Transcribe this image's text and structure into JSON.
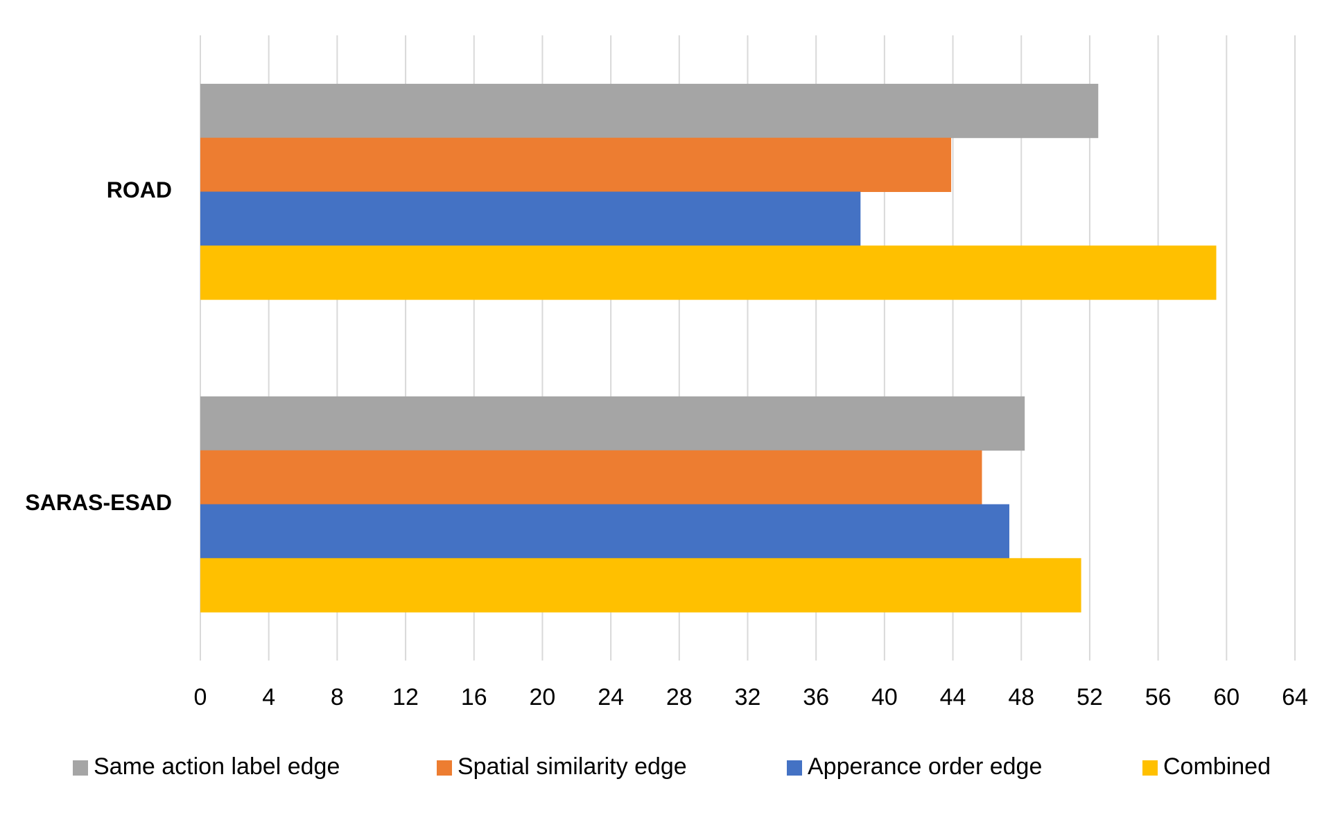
{
  "chart_data": {
    "type": "hbar",
    "categories": [
      "ROAD",
      "SARAS-ESAD"
    ],
    "series": [
      {
        "name": "Same action label edge",
        "color": "#a5a5a5",
        "values": [
          52.5,
          48.2
        ]
      },
      {
        "name": "Spatial similarity edge",
        "color": "#ed7d31",
        "values": [
          43.9,
          45.7
        ]
      },
      {
        "name": "Apperance order edge",
        "color": "#4472c4",
        "values": [
          38.6,
          47.3
        ]
      },
      {
        "name": "Combined",
        "color": "#ffc000",
        "values": [
          59.4,
          51.5
        ]
      }
    ],
    "xlim": [
      0,
      64
    ],
    "xticks": [
      0,
      4,
      8,
      12,
      16,
      20,
      24,
      28,
      32,
      36,
      40,
      44,
      48,
      52,
      56,
      60,
      64
    ],
    "grid": true,
    "legend": "bottom"
  }
}
